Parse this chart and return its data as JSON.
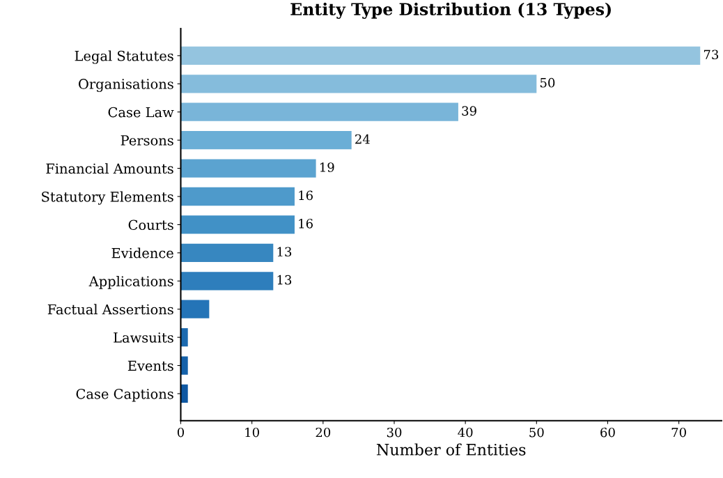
{
  "chart_data": {
    "type": "bar",
    "orientation": "horizontal",
    "title": "Entity Type Distribution (13 Types)",
    "xlabel": "Number of Entities",
    "categories": [
      "Legal Statutes",
      "Organisations",
      "Case Law",
      "Persons",
      "Financial Amounts",
      "Statutory Elements",
      "Courts",
      "Evidence",
      "Applications",
      "Factual Assertions",
      "Lawsuits",
      "Events",
      "Case Captions"
    ],
    "values": [
      73,
      50,
      39,
      24,
      19,
      16,
      16,
      13,
      13,
      4,
      1,
      1,
      1
    ],
    "value_labels": [
      "73",
      "50",
      "39",
      "24",
      "19",
      "16",
      "16",
      "13",
      "13",
      null,
      null,
      null,
      null
    ],
    "colors": [
      "#94c4df",
      "#85bcdc",
      "#79b5d9",
      "#6aaed6",
      "#5ba3d0",
      "#4e9acb",
      "#4191c6",
      "#3787c0",
      "#2e7ebc",
      "#2474b7",
      "#1c6aaf",
      "#1561a9",
      "#0f58a2"
    ],
    "xlim": [
      0,
      76
    ],
    "xticks": [
      0,
      10,
      20,
      30,
      40,
      50,
      60,
      70
    ],
    "grid": false
  }
}
